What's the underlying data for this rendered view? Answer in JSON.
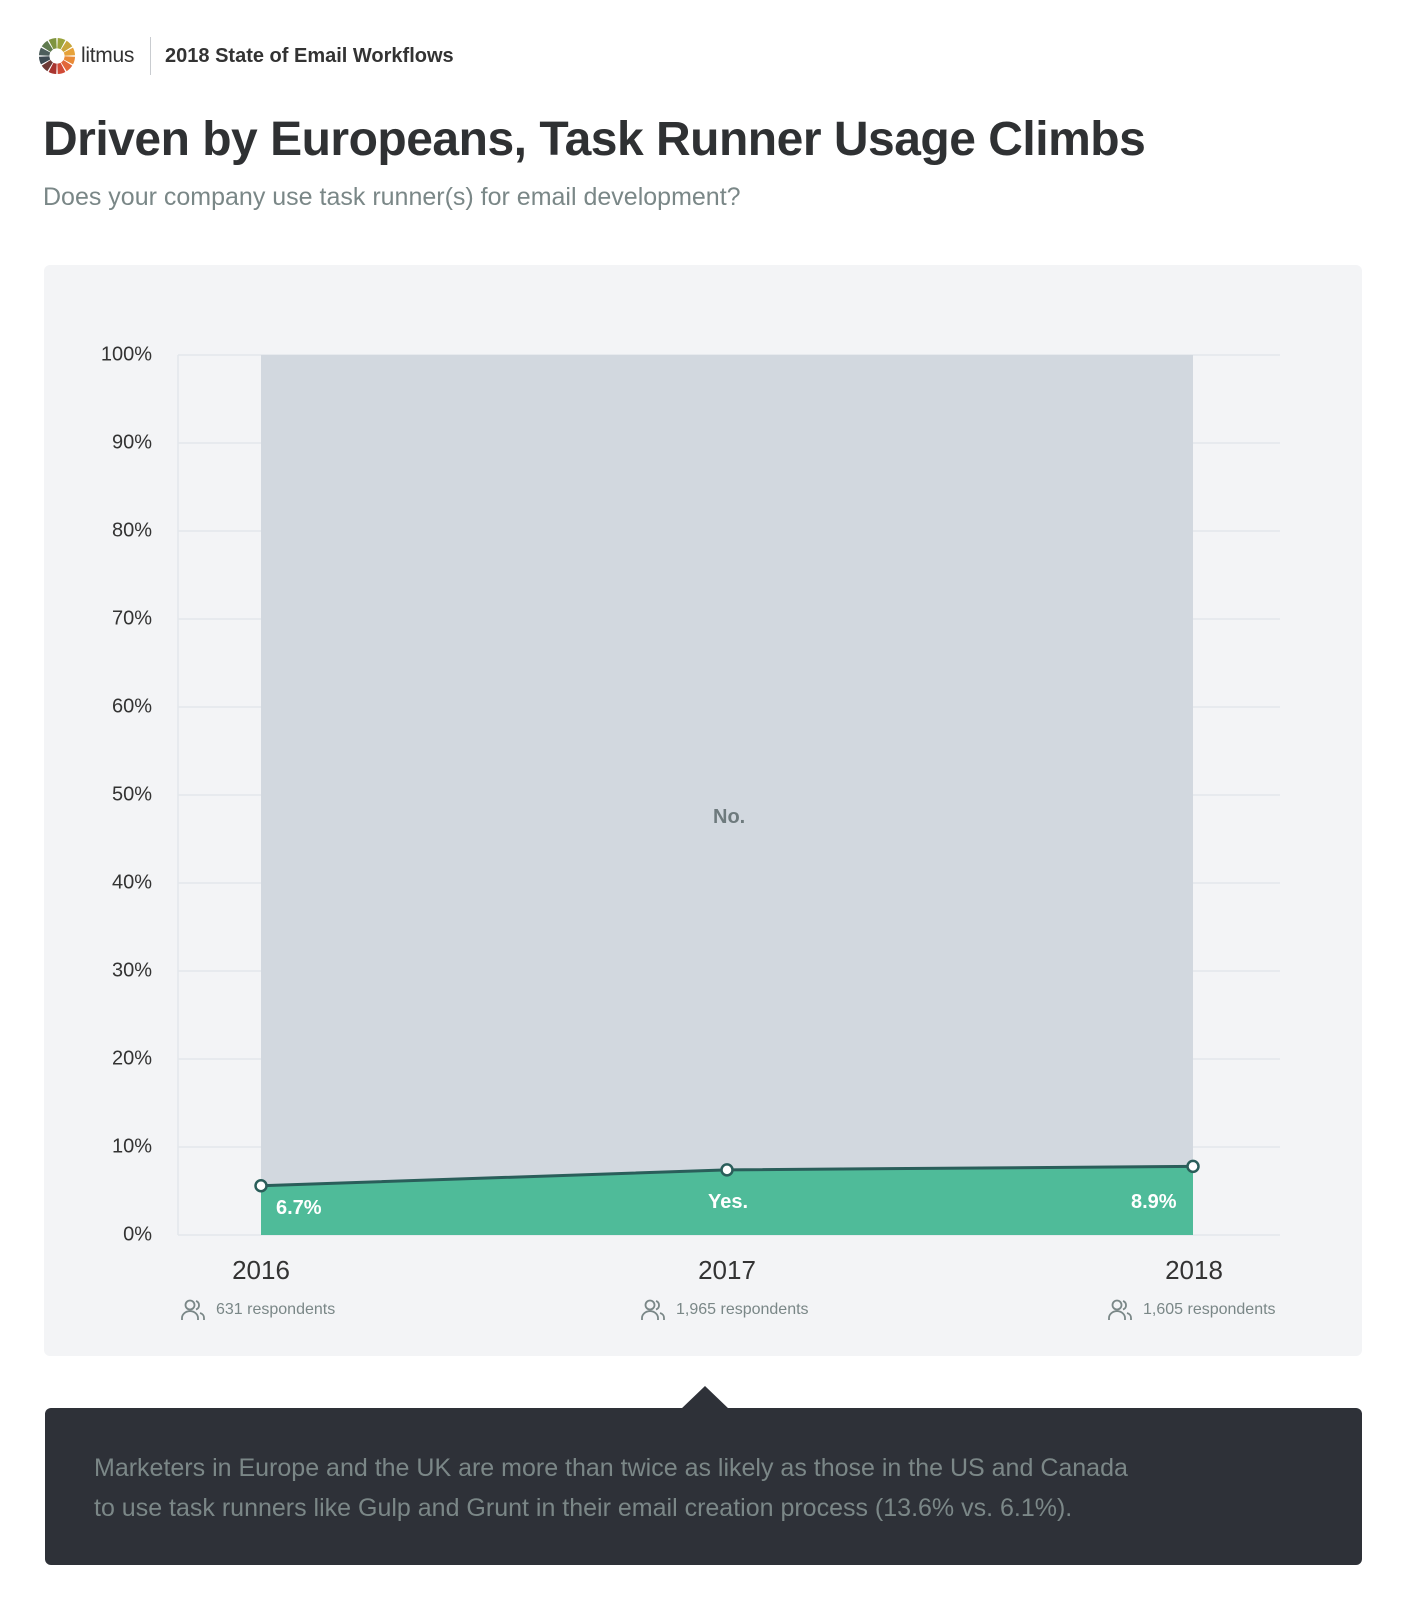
{
  "header": {
    "brand": "litmus",
    "report_title": "2018 State of Email Workflows",
    "logo_colors": [
      "#9aa33b",
      "#c8a63a",
      "#e6a23a",
      "#e98a36",
      "#e2673a",
      "#d14a36",
      "#a8342f",
      "#6e3a36",
      "#3d4a52",
      "#4d5e5c",
      "#5f7a4e",
      "#7f943f"
    ]
  },
  "title": "Driven by Europeans, Task Runner Usage Climbs",
  "subtitle": "Does your company use task runner(s) for email development?",
  "chart": {
    "y_ticks": [
      "100%",
      "90%",
      "80%",
      "70%",
      "60%",
      "50%",
      "40%",
      "30%",
      "20%",
      "10%",
      "0%"
    ],
    "no_label": "No.",
    "yes_label": "Yes.",
    "label_2016": "6.7%",
    "label_2018": "8.9%",
    "colors": {
      "no": "#d2d8df",
      "yes": "#4fbb99",
      "line": "#2a5e5a",
      "grid": "#e3e7eb",
      "background": "#f3f4f6"
    },
    "years": [
      {
        "year": "2016",
        "respondents": "631 respondents"
      },
      {
        "year": "2017",
        "respondents": "1,965 respondents"
      },
      {
        "year": "2018",
        "respondents": "1,605 respondents"
      }
    ]
  },
  "callout": {
    "text_line1": "Marketers in Europe and the UK are more than twice as likely as those in the US and Canada",
    "text_line2": "to use task runners like Gulp and Grunt in their email creation process (13.6% vs. 6.1%)."
  },
  "chart_data": {
    "type": "area",
    "title": "Driven by Europeans, Task Runner Usage Climbs",
    "subtitle": "Does your company use task runner(s) for email development?",
    "categories": [
      "2016",
      "2017",
      "2018"
    ],
    "series": [
      {
        "name": "Yes.",
        "values": [
          6.7,
          7.5,
          8.9
        ],
        "color": "#4fbb99"
      },
      {
        "name": "No.",
        "values": [
          93.3,
          92.5,
          91.1
        ],
        "color": "#d2d8df"
      }
    ],
    "stacked": true,
    "respondents": [
      631,
      1965,
      1605
    ],
    "data_labels": [
      "6.7%",
      "",
      "8.9%"
    ],
    "xlabel": "",
    "ylabel": "",
    "ylim": [
      0,
      100
    ],
    "y_tick_labels": [
      "0%",
      "10%",
      "20%",
      "30%",
      "40%",
      "50%",
      "60%",
      "70%",
      "80%",
      "90%",
      "100%"
    ],
    "grid": true,
    "annotation": "Marketers in Europe and the UK are more than twice as likely as those in the US and Canada to use task runners like Gulp and Grunt in their email creation process (13.6% vs. 6.1%)."
  }
}
